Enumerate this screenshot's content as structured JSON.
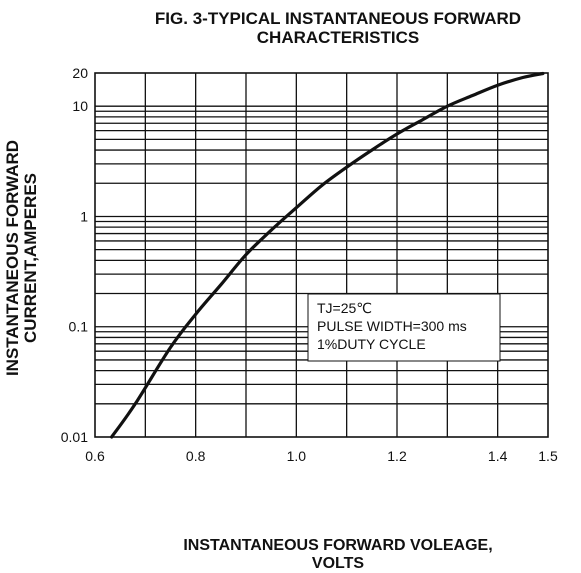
{
  "chart_data": {
    "type": "line",
    "title": "FIG. 3-TYPICAL INSTANTANEOUS FORWARD CHARACTERISTICS",
    "title_lines": [
      "FIG. 3-TYPICAL INSTANTANEOUS FORWARD",
      "CHARACTERISTICS"
    ],
    "ylabel_lines": [
      "INSTANTANEOUS FORWARD",
      "CURRENT,AMPERES"
    ],
    "xlabel_lines": [
      "INSTANTANEOUS FORWARD VOLEAGE,",
      "VOLTS"
    ],
    "xlim": [
      0.6,
      1.5
    ],
    "ylim": [
      0.01,
      20
    ],
    "y_scale": "log",
    "grid": true,
    "x_ticks": [
      {
        "value": 0.6,
        "label": "0.6"
      },
      {
        "value": 0.8,
        "label": "0.8"
      },
      {
        "value": 1.0,
        "label": "1.0"
      },
      {
        "value": 1.2,
        "label": "1.2"
      },
      {
        "value": 1.4,
        "label": "1.4"
      },
      {
        "value": 1.5,
        "label": "1.5"
      }
    ],
    "y_ticks": [
      {
        "value": 0.01,
        "label": "0.01"
      },
      {
        "value": 0.1,
        "label": "0.1"
      },
      {
        "value": 1,
        "label": "1"
      },
      {
        "value": 10,
        "label": "10"
      },
      {
        "value": 20,
        "label": "20"
      }
    ],
    "annotation": {
      "lines": [
        "TJ=25℃",
        "PULSE WIDTH=300 ms",
        "1%DUTY CYCLE"
      ]
    },
    "series": [
      {
        "x": [
          0.633,
          0.68,
          0.75,
          0.8,
          0.85,
          0.9,
          0.95,
          1.0,
          1.05,
          1.1,
          1.15,
          1.2,
          1.25,
          1.3,
          1.35,
          1.4,
          1.45,
          1.49
        ],
        "y": [
          0.01,
          0.02,
          0.065,
          0.13,
          0.24,
          0.45,
          0.75,
          1.2,
          1.9,
          2.8,
          4.0,
          5.6,
          7.5,
          10,
          12.5,
          15.5,
          18.2,
          19.8
        ]
      }
    ]
  }
}
